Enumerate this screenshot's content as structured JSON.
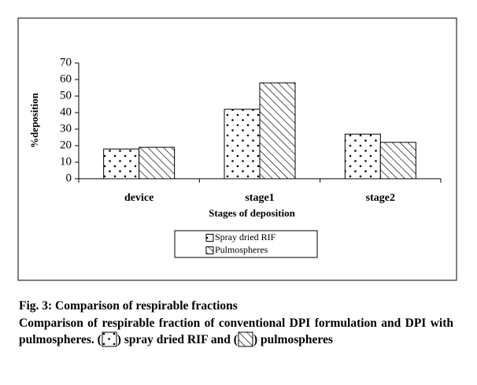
{
  "chart_data": {
    "type": "bar",
    "categories": [
      "device",
      "stage1",
      "stage2"
    ],
    "series": [
      {
        "name": "Spray dried RIF",
        "color": "#000000",
        "pattern": "dots",
        "values": [
          18,
          42,
          27
        ]
      },
      {
        "name": "Pulmospheres",
        "color": "#000000",
        "pattern": "hatch",
        "values": [
          19,
          58,
          22
        ]
      }
    ],
    "ylim": [
      0,
      70
    ],
    "yticks": [
      0,
      10,
      20,
      30,
      40,
      50,
      60,
      70
    ],
    "ylabel": "%deposition",
    "xlabel": "Stages of deposition",
    "legend": "bottom",
    "grid": false
  },
  "caption": {
    "title": "Fig. 3: Comparison of respirable fractions",
    "text_1": "Comparison of respirable fraction of conventional DPI formulation and DPI with pulmospheres. (",
    "text_2": ") spray dried RIF and (",
    "text_3": ") pulmospheres"
  }
}
